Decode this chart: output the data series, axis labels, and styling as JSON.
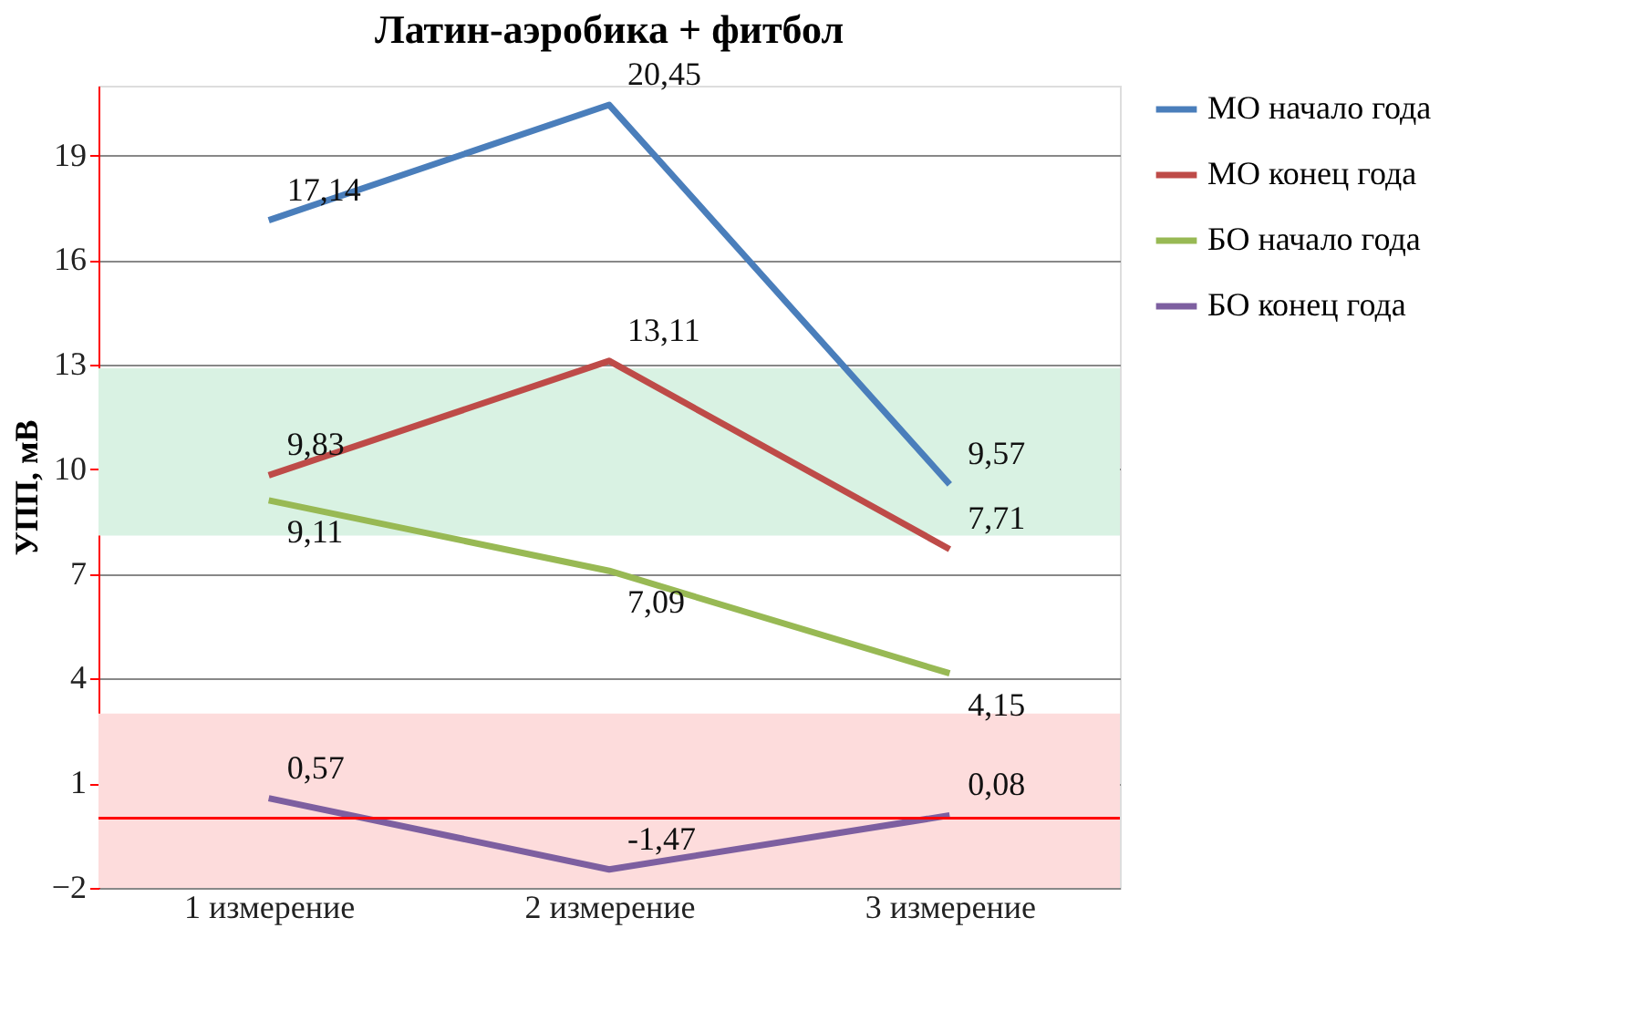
{
  "chart_data": {
    "type": "line",
    "title": "Латин-аэробика + фитбол",
    "ylabel": "УПП, мВ",
    "categories": [
      "1 измерение",
      "2 измерение",
      "3 измерение"
    ],
    "series": [
      {
        "name": "МО начало года",
        "color": "#4a7ebb",
        "values": [
          17.14,
          20.45,
          9.57
        ],
        "value_labels": [
          "17,14",
          "20,45",
          "9,57"
        ]
      },
      {
        "name": "МО конец года",
        "color": "#be4b48",
        "values": [
          9.83,
          13.11,
          7.71
        ],
        "value_labels": [
          "9,83",
          "13,11",
          "7,71"
        ]
      },
      {
        "name": "БО начало года",
        "color": "#98b954",
        "values": [
          9.11,
          7.09,
          4.15
        ],
        "value_labels": [
          "9,11",
          "7,09",
          "4,15"
        ]
      },
      {
        "name": "БО конец года",
        "color": "#7d5fa0",
        "values": [
          0.57,
          -1.47,
          0.08
        ],
        "value_labels": [
          "0,57",
          "-1,47",
          "0,08"
        ]
      }
    ],
    "ylim": [
      -2,
      21
    ],
    "yticks": [
      -2,
      1,
      4,
      7,
      10,
      13,
      16,
      19
    ],
    "grid": "y",
    "legend": "right",
    "marker": "none",
    "line_style": "solid",
    "ref_lines": [
      {
        "axis": "y",
        "value": 0,
        "color": "#ff0000"
      }
    ],
    "bands": [
      {
        "axis": "y",
        "from": 8.1,
        "to": 12.9,
        "color": "#d9f2e3"
      },
      {
        "axis": "y",
        "from": -2,
        "to": 3,
        "color": "#fddcdc"
      }
    ]
  }
}
